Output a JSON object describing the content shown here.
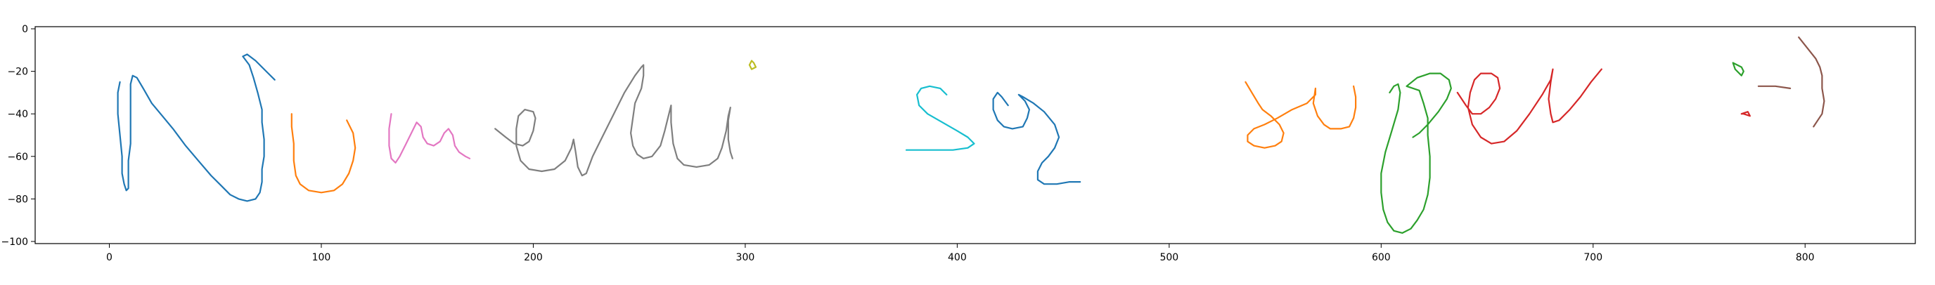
{
  "chart_data": {
    "type": "line",
    "title": "",
    "xlabel": "",
    "ylabel": "",
    "xlim": [
      -35,
      852
    ],
    "ylim": [
      -101,
      1
    ],
    "x_ticks": [
      0,
      100,
      200,
      300,
      400,
      500,
      600,
      700,
      800
    ],
    "x_tick_labels": [
      "0",
      "100",
      "200",
      "300",
      "400",
      "500",
      "600",
      "700",
      "800"
    ],
    "y_ticks": [
      0,
      -20,
      -40,
      -60,
      -80,
      -100
    ],
    "y_tick_labels": [
      "0",
      "−20",
      "−40",
      "−60",
      "−80",
      "−100"
    ],
    "grid": false,
    "legend": "none",
    "series": [
      {
        "color": "#1f77b4",
        "points": [
          [
            5,
            -25
          ],
          [
            4,
            -30
          ],
          [
            4,
            -40
          ],
          [
            5,
            -50
          ],
          [
            6,
            -60
          ],
          [
            6,
            -68
          ],
          [
            7,
            -73
          ],
          [
            8,
            -76
          ],
          [
            9,
            -75
          ],
          [
            9,
            -70
          ],
          [
            9,
            -62
          ],
          [
            10,
            -54
          ],
          [
            10,
            -45
          ],
          [
            10,
            -35
          ],
          [
            10,
            -26
          ],
          [
            11,
            -22
          ],
          [
            13,
            -23
          ],
          [
            16,
            -28
          ],
          [
            20,
            -35
          ],
          [
            25,
            -41
          ],
          [
            30,
            -47
          ],
          [
            36,
            -55
          ],
          [
            42,
            -62
          ],
          [
            48,
            -69
          ],
          [
            53,
            -74
          ],
          [
            57,
            -78
          ],
          [
            61,
            -80
          ],
          [
            65,
            -81
          ],
          [
            69,
            -80
          ],
          [
            71,
            -77
          ],
          [
            72,
            -72
          ],
          [
            72,
            -66
          ],
          [
            73,
            -60
          ],
          [
            73,
            -52
          ],
          [
            72,
            -44
          ],
          [
            72,
            -38
          ],
          [
            70,
            -30
          ],
          [
            68,
            -23
          ],
          [
            66,
            -17
          ],
          [
            63,
            -13
          ],
          [
            65,
            -12
          ],
          [
            69,
            -15
          ],
          [
            74,
            -20
          ],
          [
            78,
            -24
          ]
        ]
      },
      {
        "color": "#ff7f0e",
        "points": [
          [
            86,
            -40
          ],
          [
            86,
            -46
          ],
          [
            87,
            -54
          ],
          [
            87,
            -62
          ],
          [
            88,
            -69
          ],
          [
            90,
            -73
          ],
          [
            94,
            -76
          ],
          [
            100,
            -77
          ],
          [
            106,
            -76
          ],
          [
            110,
            -73
          ],
          [
            113,
            -68
          ],
          [
            115,
            -62
          ],
          [
            116,
            -56
          ],
          [
            115,
            -49
          ],
          [
            113,
            -45
          ],
          [
            112,
            -43
          ]
        ]
      },
      {
        "color": "#e377c2",
        "points": [
          [
            133,
            -40
          ],
          [
            132,
            -47
          ],
          [
            132,
            -55
          ],
          [
            133,
            -61
          ],
          [
            135,
            -63
          ],
          [
            137,
            -60
          ],
          [
            140,
            -54
          ],
          [
            143,
            -48
          ],
          [
            145,
            -44
          ],
          [
            147,
            -46
          ],
          [
            148,
            -51
          ],
          [
            150,
            -54
          ],
          [
            153,
            -55
          ],
          [
            156,
            -53
          ],
          [
            158,
            -49
          ],
          [
            160,
            -47
          ],
          [
            162,
            -50
          ],
          [
            163,
            -55
          ],
          [
            165,
            -58
          ],
          [
            168,
            -60
          ],
          [
            170,
            -61
          ]
        ]
      },
      {
        "color": "#7f7f7f",
        "points": [
          [
            182,
            -47
          ],
          [
            187,
            -51
          ],
          [
            191,
            -54
          ],
          [
            195,
            -55
          ],
          [
            198,
            -53
          ],
          [
            200,
            -48
          ],
          [
            201,
            -42
          ],
          [
            200,
            -39
          ],
          [
            196,
            -38
          ],
          [
            193,
            -41
          ],
          [
            192,
            -47
          ],
          [
            192,
            -55
          ],
          [
            194,
            -62
          ],
          [
            198,
            -66
          ],
          [
            204,
            -67
          ],
          [
            210,
            -66
          ],
          [
            215,
            -62
          ],
          [
            218,
            -56
          ],
          [
            219,
            -52
          ],
          [
            220,
            -58
          ],
          [
            221,
            -65
          ],
          [
            223,
            -69
          ],
          [
            225,
            -68
          ],
          [
            228,
            -60
          ],
          [
            233,
            -50
          ],
          [
            238,
            -40
          ],
          [
            243,
            -30
          ],
          [
            248,
            -22
          ],
          [
            251,
            -18
          ],
          [
            252,
            -17
          ],
          [
            252,
            -22
          ],
          [
            251,
            -28
          ],
          [
            248,
            -35
          ],
          [
            247,
            -42
          ],
          [
            246,
            -49
          ],
          [
            247,
            -55
          ],
          [
            249,
            -59
          ],
          [
            252,
            -61
          ],
          [
            256,
            -60
          ],
          [
            260,
            -55
          ],
          [
            262,
            -48
          ],
          [
            264,
            -40
          ],
          [
            265,
            -36
          ],
          [
            265,
            -44
          ],
          [
            266,
            -54
          ],
          [
            268,
            -61
          ],
          [
            271,
            -64
          ],
          [
            277,
            -65
          ],
          [
            283,
            -64
          ],
          [
            287,
            -61
          ],
          [
            289,
            -56
          ],
          [
            291,
            -48
          ],
          [
            292,
            -41
          ],
          [
            293,
            -37
          ],
          [
            292,
            -43
          ],
          [
            292,
            -52
          ],
          [
            293,
            -58
          ],
          [
            294,
            -61
          ]
        ]
      },
      {
        "color": "#bcbd22",
        "points": [
          [
            303,
            -15
          ],
          [
            304,
            -16
          ],
          [
            305,
            -18
          ],
          [
            303,
            -19
          ],
          [
            302,
            -17
          ],
          [
            303,
            -15
          ]
        ]
      },
      {
        "color": "#17becf",
        "points": [
          [
            395,
            -31
          ],
          [
            392,
            -28
          ],
          [
            387,
            -27
          ],
          [
            383,
            -28
          ],
          [
            381,
            -31
          ],
          [
            382,
            -36
          ],
          [
            386,
            -40
          ],
          [
            393,
            -44
          ],
          [
            400,
            -48
          ],
          [
            405,
            -51
          ],
          [
            408,
            -54
          ],
          [
            405,
            -56
          ],
          [
            398,
            -57
          ],
          [
            390,
            -57
          ],
          [
            382,
            -57
          ],
          [
            376,
            -57
          ]
        ]
      },
      {
        "color": "#1f77b4",
        "points": [
          [
            424,
            -36
          ],
          [
            421,
            -32
          ],
          [
            419,
            -30
          ],
          [
            417,
            -33
          ],
          [
            417,
            -38
          ],
          [
            419,
            -43
          ],
          [
            422,
            -46
          ],
          [
            426,
            -47
          ],
          [
            431,
            -46
          ],
          [
            433,
            -42
          ],
          [
            434,
            -38
          ],
          [
            432,
            -34
          ],
          [
            429,
            -31
          ],
          [
            431,
            -32
          ],
          [
            436,
            -35
          ],
          [
            441,
            -39
          ],
          [
            446,
            -45
          ],
          [
            448,
            -51
          ],
          [
            446,
            -56
          ],
          [
            443,
            -60
          ],
          [
            440,
            -63
          ],
          [
            438,
            -67
          ],
          [
            438,
            -71
          ],
          [
            441,
            -73
          ],
          [
            447,
            -73
          ],
          [
            453,
            -72
          ],
          [
            458,
            -72
          ]
        ]
      },
      {
        "color": "#ff7f0e",
        "points": [
          [
            536,
            -25
          ],
          [
            539,
            -30
          ],
          [
            542,
            -35
          ],
          [
            544,
            -38
          ],
          [
            548,
            -41
          ],
          [
            552,
            -45
          ],
          [
            554,
            -49
          ],
          [
            553,
            -53
          ],
          [
            550,
            -55
          ],
          [
            545,
            -56
          ],
          [
            540,
            -55
          ],
          [
            537,
            -53
          ],
          [
            537,
            -50
          ],
          [
            540,
            -47
          ],
          [
            545,
            -45
          ],
          [
            551,
            -42
          ],
          [
            558,
            -38
          ],
          [
            565,
            -35
          ],
          [
            569,
            -31
          ],
          [
            569,
            -28
          ],
          [
            568,
            -35
          ],
          [
            570,
            -41
          ],
          [
            573,
            -45
          ],
          [
            576,
            -47
          ],
          [
            581,
            -47
          ],
          [
            585,
            -46
          ],
          [
            587,
            -42
          ],
          [
            588,
            -37
          ],
          [
            588,
            -32
          ],
          [
            587,
            -27
          ]
        ]
      },
      {
        "color": "#2ca02c",
        "points": [
          [
            604,
            -30
          ],
          [
            606,
            -27
          ],
          [
            608,
            -26
          ],
          [
            609,
            -30
          ],
          [
            608,
            -38
          ],
          [
            605,
            -48
          ],
          [
            602,
            -58
          ],
          [
            600,
            -68
          ],
          [
            600,
            -77
          ],
          [
            601,
            -85
          ],
          [
            603,
            -91
          ],
          [
            606,
            -95
          ],
          [
            610,
            -96
          ],
          [
            614,
            -94
          ],
          [
            617,
            -90
          ],
          [
            620,
            -85
          ],
          [
            622,
            -78
          ],
          [
            623,
            -70
          ],
          [
            623,
            -60
          ],
          [
            622,
            -50
          ],
          [
            622,
            -42
          ],
          [
            620,
            -35
          ],
          [
            618,
            -29
          ],
          [
            612,
            -27
          ],
          [
            617,
            -23
          ],
          [
            623,
            -21
          ],
          [
            628,
            -21
          ],
          [
            632,
            -24
          ],
          [
            633,
            -28
          ],
          [
            631,
            -33
          ],
          [
            627,
            -39
          ],
          [
            622,
            -45
          ],
          [
            618,
            -49
          ],
          [
            615,
            -51
          ]
        ]
      },
      {
        "color": "#d62728",
        "points": [
          [
            636,
            -30
          ],
          [
            640,
            -36
          ],
          [
            643,
            -40
          ],
          [
            647,
            -40
          ],
          [
            651,
            -37
          ],
          [
            654,
            -33
          ],
          [
            656,
            -28
          ],
          [
            655,
            -23
          ],
          [
            652,
            -21
          ],
          [
            647,
            -21
          ],
          [
            644,
            -24
          ],
          [
            642,
            -30
          ],
          [
            641,
            -37
          ],
          [
            643,
            -45
          ],
          [
            647,
            -51
          ],
          [
            652,
            -54
          ],
          [
            658,
            -53
          ],
          [
            664,
            -48
          ],
          [
            670,
            -40
          ],
          [
            676,
            -31
          ],
          [
            680,
            -24
          ],
          [
            681,
            -19
          ],
          [
            680,
            -25
          ],
          [
            679,
            -33
          ],
          [
            680,
            -40
          ],
          [
            681,
            -44
          ],
          [
            684,
            -43
          ],
          [
            689,
            -38
          ],
          [
            694,
            -32
          ],
          [
            699,
            -25
          ],
          [
            704,
            -19
          ]
        ]
      },
      {
        "color": "#2ca02c",
        "points": [
          [
            766,
            -16
          ],
          [
            770,
            -18
          ],
          [
            771,
            -20
          ],
          [
            770,
            -22
          ],
          [
            767,
            -19
          ],
          [
            766,
            -16
          ]
        ]
      },
      {
        "color": "#8c564b",
        "points": [
          [
            778,
            -27
          ],
          [
            786,
            -27
          ],
          [
            793,
            -28
          ]
        ]
      },
      {
        "color": "#d62728",
        "points": [
          [
            770,
            -40
          ],
          [
            773,
            -39
          ],
          [
            774,
            -41
          ],
          [
            771,
            -40
          ],
          [
            770,
            -40
          ]
        ]
      },
      {
        "color": "#8c564b",
        "points": [
          [
            797,
            -4
          ],
          [
            801,
            -9
          ],
          [
            805,
            -14
          ],
          [
            807,
            -18
          ],
          [
            808,
            -22
          ],
          [
            808,
            -28
          ],
          [
            809,
            -34
          ],
          [
            808,
            -40
          ],
          [
            806,
            -43
          ],
          [
            804,
            -46
          ]
        ]
      }
    ]
  }
}
